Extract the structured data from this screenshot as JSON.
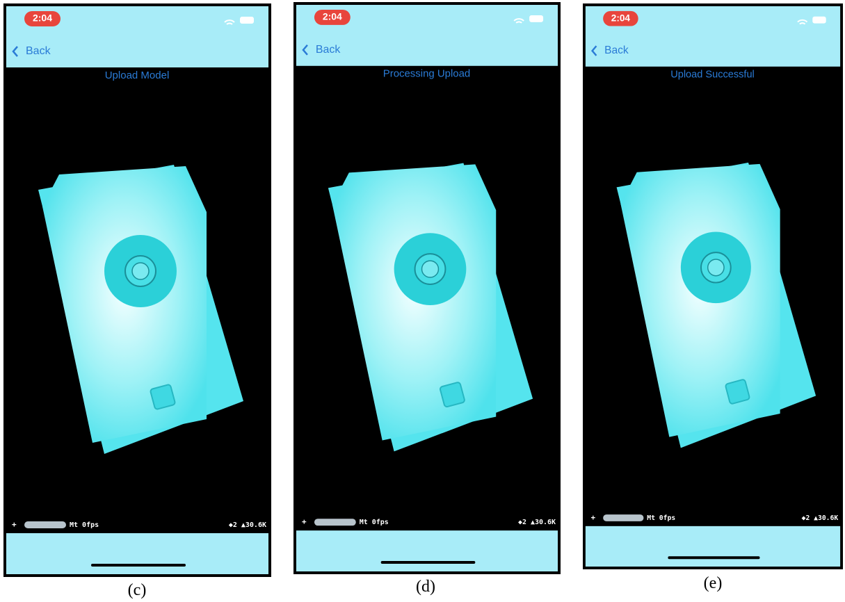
{
  "panels": [
    {
      "status_time": "2:04",
      "back": "Back",
      "title": "Upload Model",
      "stats_plus": "+",
      "stats_fps": "Mt 0fps",
      "stats_right": "◆2 ▲30.6K",
      "caption": "(c)"
    },
    {
      "status_time": "2:04",
      "back": "Back",
      "title": "Processing Upload",
      "stats_plus": "+",
      "stats_fps": "Mt 0fps",
      "stats_right": "◆2 ▲30.6K",
      "caption": "(d)"
    },
    {
      "status_time": "2:04",
      "back": "Back",
      "title": "Upload Successful",
      "stats_plus": "+",
      "stats_fps": "Mt 0fps",
      "stats_right": "◆2 ▲30.6K",
      "caption": "(e)"
    }
  ]
}
